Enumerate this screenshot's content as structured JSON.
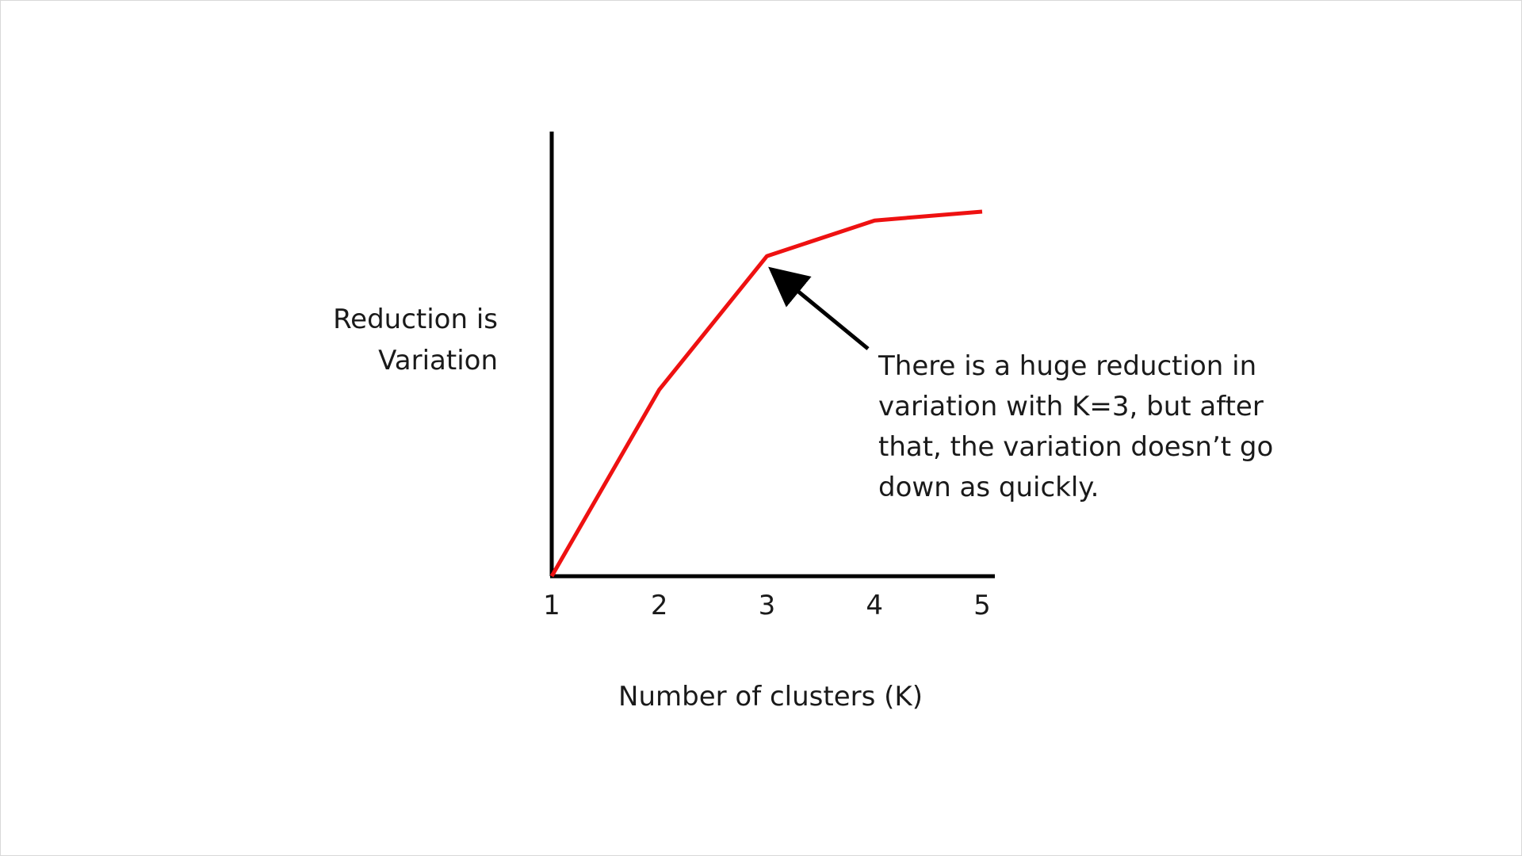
{
  "chart_data": {
    "type": "line",
    "title": "",
    "xlabel": "Number of clusters (K)",
    "ylabel_lines": [
      "Reduction is",
      "Variation"
    ],
    "categories": [
      "1",
      "2",
      "3",
      "4",
      "5"
    ],
    "x": [
      1,
      2,
      3,
      4,
      5
    ],
    "series": [
      {
        "color": "#ee1111",
        "values": [
          0.0,
          0.42,
          0.72,
          0.8,
          0.82
        ]
      }
    ],
    "ylim": [
      0,
      1
    ],
    "grid": false,
    "legend": "none",
    "annotations": [
      {
        "lines": [
          "There is a huge reduction in",
          "variation with K=3, but after",
          "that, the variation doesn’t go",
          "down as quickly."
        ],
        "points_to_x": 3
      }
    ],
    "colors": {
      "axis": "#000000",
      "line": "#ee1111",
      "text": "#1a1a1a",
      "arrow": "#000000"
    }
  }
}
